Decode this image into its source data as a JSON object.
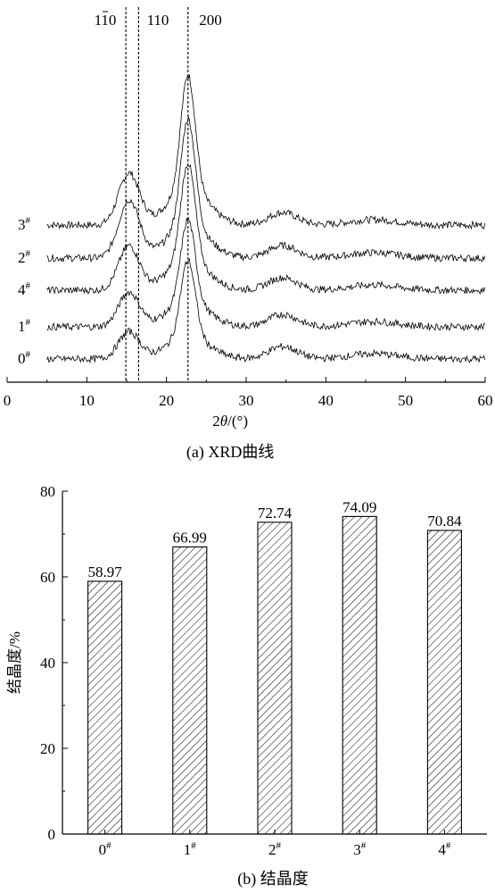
{
  "chart_data": [
    {
      "type": "line",
      "caption": "(a)  XRD曲线",
      "xlabel_parts": [
        "2",
        "θ",
        "/(°)"
      ],
      "xlim": [
        0,
        60
      ],
      "x_ticks": [
        0,
        10,
        20,
        30,
        40,
        50,
        60
      ],
      "peak_labels": [
        {
          "label": "110",
          "overbar_digit": "1",
          "x": 14.9
        },
        {
          "label": "110",
          "overbar_digit": "",
          "x": 16.5
        },
        {
          "label": "200",
          "overbar_digit": "",
          "x": 22.7
        }
      ],
      "series": [
        {
          "name": "3",
          "sup": "#"
        },
        {
          "name": "2",
          "sup": "#"
        },
        {
          "name": "4",
          "sup": "#"
        },
        {
          "name": "1",
          "sup": "#"
        },
        {
          "name": "0",
          "sup": "#"
        }
      ]
    },
    {
      "type": "bar",
      "caption": "(b)  结晶度",
      "ylabel": "结晶度/%",
      "ylim": [
        0,
        80
      ],
      "y_ticks": [
        0,
        20,
        40,
        60,
        80
      ],
      "categories": [
        "0",
        "1",
        "2",
        "3",
        "4"
      ],
      "category_sup": "#",
      "values": [
        58.97,
        66.99,
        72.74,
        74.09,
        70.84
      ],
      "value_labels": [
        "58.97",
        "66.99",
        "72.74",
        "74.09",
        "70.84"
      ],
      "bar_fill": "diagonal-hatch"
    }
  ]
}
